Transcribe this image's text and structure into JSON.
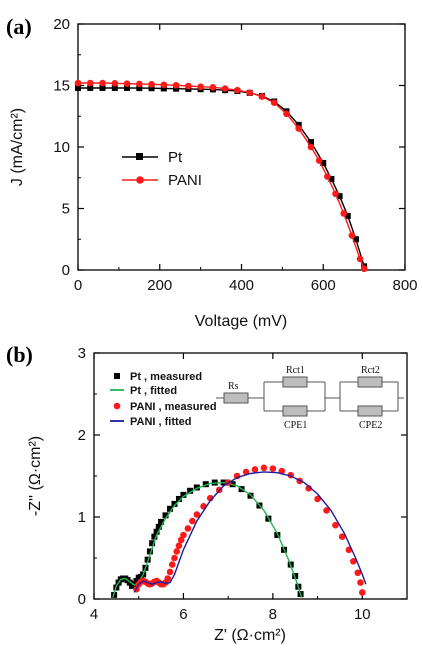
{
  "chart_data": [
    {
      "panel_label": "(a)",
      "type": "line",
      "xlabel": "Voltage (mV)",
      "ylabel": "J (mA/cm²)",
      "xlim": [
        0,
        800
      ],
      "ylim": [
        0,
        20
      ],
      "xticks": [
        "0",
        "200",
        "400",
        "600",
        "800"
      ],
      "yticks": [
        "0",
        "5",
        "10",
        "15",
        "20"
      ],
      "legend_position": "center-left",
      "series": [
        {
          "name": "Pt",
          "color": "#000000",
          "marker": "square",
          "x": [
            0,
            30,
            60,
            90,
            120,
            150,
            180,
            210,
            240,
            270,
            300,
            330,
            360,
            390,
            420,
            450,
            480,
            510,
            540,
            570,
            600,
            620,
            640,
            660,
            680,
            700
          ],
          "y": [
            14.8,
            14.8,
            14.8,
            14.8,
            14.8,
            14.79,
            14.78,
            14.76,
            14.74,
            14.72,
            14.7,
            14.68,
            14.62,
            14.55,
            14.4,
            14.15,
            13.7,
            12.9,
            11.8,
            10.4,
            8.7,
            7.4,
            6.0,
            4.4,
            2.5,
            0.3
          ]
        },
        {
          "name": "PANI",
          "color": "#ff1a1a",
          "marker": "circle",
          "x": [
            0,
            30,
            60,
            90,
            120,
            150,
            180,
            210,
            240,
            270,
            300,
            330,
            360,
            390,
            420,
            450,
            480,
            510,
            540,
            570,
            590,
            610,
            630,
            650,
            670,
            690,
            700
          ],
          "y": [
            15.2,
            15.2,
            15.2,
            15.18,
            15.15,
            15.13,
            15.1,
            15.06,
            15.02,
            14.96,
            14.9,
            14.85,
            14.75,
            14.62,
            14.42,
            14.1,
            13.6,
            12.7,
            11.5,
            10.0,
            8.9,
            7.6,
            6.2,
            4.6,
            2.8,
            0.9,
            0.1
          ]
        }
      ]
    },
    {
      "panel_label": "(b)",
      "type": "scatter",
      "xlabel": "Z' (Ω·cm²)",
      "ylabel": "-Z'' (Ω·cm²)",
      "xlim": [
        4,
        11
      ],
      "ylim": [
        0,
        3
      ],
      "xticks": [
        "4",
        "6",
        "8",
        "10"
      ],
      "yticks": [
        "0",
        "1",
        "2",
        "3"
      ],
      "legend_position": "top-left",
      "series": [
        {
          "name": "Pt , measured",
          "color": "#000000",
          "marker": "square",
          "x": [
            4.45,
            4.5,
            4.55,
            4.6,
            4.65,
            4.7,
            4.75,
            4.8,
            4.85,
            4.9,
            4.95,
            5.0,
            5.05,
            5.1,
            5.15,
            5.2,
            5.25,
            5.3,
            5.35,
            5.4,
            5.45,
            5.5,
            5.6,
            5.7,
            5.8,
            5.9,
            6.0,
            6.15,
            6.3,
            6.5,
            6.7,
            6.9,
            7.1,
            7.3,
            7.5,
            7.7,
            7.9,
            8.1,
            8.25,
            8.4,
            8.5,
            8.57,
            8.62
          ],
          "y": [
            0.05,
            0.14,
            0.2,
            0.24,
            0.25,
            0.25,
            0.23,
            0.2,
            0.16,
            0.18,
            0.22,
            0.26,
            0.27,
            0.3,
            0.38,
            0.48,
            0.58,
            0.68,
            0.76,
            0.82,
            0.88,
            0.94,
            1.02,
            1.1,
            1.16,
            1.22,
            1.27,
            1.32,
            1.36,
            1.4,
            1.42,
            1.42,
            1.4,
            1.34,
            1.26,
            1.14,
            0.98,
            0.78,
            0.6,
            0.42,
            0.28,
            0.15,
            0.06
          ]
        },
        {
          "name": "Pt , fitted",
          "color": "#1fb84a",
          "marker": "line",
          "x": [
            4.42,
            4.5,
            4.6,
            4.7,
            4.8,
            4.9,
            5.0,
            5.1,
            5.2,
            5.4,
            5.6,
            5.8,
            6.0,
            6.3,
            6.6,
            6.9,
            7.2,
            7.5,
            7.8,
            8.1,
            8.35,
            8.55,
            8.64
          ],
          "y": [
            0.02,
            0.16,
            0.24,
            0.25,
            0.21,
            0.17,
            0.2,
            0.3,
            0.46,
            0.78,
            0.98,
            1.14,
            1.25,
            1.35,
            1.41,
            1.42,
            1.38,
            1.27,
            1.08,
            0.8,
            0.48,
            0.18,
            0.02
          ]
        },
        {
          "name": "PANI , measured",
          "color": "#ff1a1a",
          "marker": "circle",
          "x": [
            4.95,
            5.0,
            5.05,
            5.1,
            5.15,
            5.2,
            5.25,
            5.3,
            5.35,
            5.4,
            5.45,
            5.5,
            5.55,
            5.6,
            5.65,
            5.7,
            5.75,
            5.8,
            5.85,
            5.9,
            5.95,
            6.0,
            6.1,
            6.2,
            6.3,
            6.45,
            6.6,
            6.8,
            7.0,
            7.2,
            7.4,
            7.6,
            7.8,
            8.0,
            8.2,
            8.4,
            8.6,
            8.8,
            9.0,
            9.2,
            9.4,
            9.55,
            9.7,
            9.8,
            9.9,
            9.96,
            10.0
          ],
          "y": [
            0.12,
            0.18,
            0.21,
            0.22,
            0.21,
            0.19,
            0.18,
            0.19,
            0.21,
            0.22,
            0.2,
            0.18,
            0.18,
            0.2,
            0.25,
            0.33,
            0.42,
            0.5,
            0.58,
            0.65,
            0.72,
            0.78,
            0.86,
            0.95,
            1.03,
            1.13,
            1.23,
            1.33,
            1.42,
            1.5,
            1.55,
            1.58,
            1.6,
            1.59,
            1.56,
            1.51,
            1.44,
            1.35,
            1.22,
            1.08,
            0.9,
            0.76,
            0.6,
            0.46,
            0.32,
            0.2,
            0.08
          ]
        },
        {
          "name": "PANI , fitted",
          "color": "#1c1c9e",
          "marker": "line",
          "x": [
            4.9,
            5.0,
            5.1,
            5.2,
            5.3,
            5.4,
            5.5,
            5.6,
            5.7,
            5.8,
            6.0,
            6.3,
            6.6,
            6.9,
            7.2,
            7.5,
            7.8,
            8.1,
            8.4,
            8.7,
            9.0,
            9.3,
            9.6,
            9.85,
            10.0,
            10.08
          ],
          "y": [
            0.08,
            0.18,
            0.22,
            0.2,
            0.18,
            0.2,
            0.21,
            0.19,
            0.2,
            0.3,
            0.6,
            0.95,
            1.2,
            1.38,
            1.48,
            1.53,
            1.55,
            1.54,
            1.5,
            1.42,
            1.28,
            1.08,
            0.8,
            0.5,
            0.3,
            0.18
          ]
        }
      ],
      "inset_circuit": {
        "labels": [
          "Rs",
          "Rct1",
          "CPE1",
          "Rct2",
          "CPE2"
        ]
      }
    }
  ]
}
